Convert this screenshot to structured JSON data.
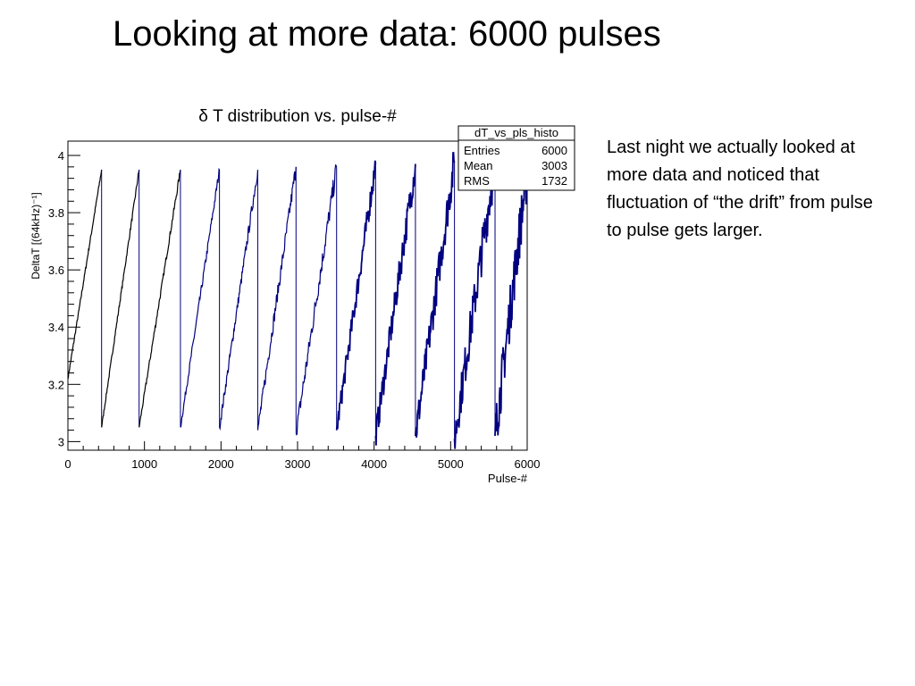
{
  "slide": {
    "title": "Looking at more data: 6000 pulses",
    "notes": "Last night we actually looked at more data and noticed that fluctuation of “the drift” from pulse to pulse gets larger."
  },
  "chart_data": {
    "type": "line",
    "title": "δ T distribution vs. pulse-#",
    "xlabel": "Pulse-#",
    "ylabel": "DeltaT [(64kHz)⁻¹]",
    "xlim": [
      0,
      6000
    ],
    "ylim": [
      2.97,
      4.05
    ],
    "xticks": [
      "0",
      "1000",
      "2000",
      "3000",
      "4000",
      "5000",
      "6000"
    ],
    "yticks": [
      "3",
      "3.2",
      "3.4",
      "3.6",
      "3.8",
      "4"
    ],
    "grid": false,
    "colors": [
      "#000000",
      "#00007f"
    ],
    "stats_box": {
      "title": "dT_vs_pls_histo",
      "rows": [
        {
          "label": "Entries",
          "value": "6000"
        },
        {
          "label": "Mean",
          "value": "3003"
        },
        {
          "label": "RMS",
          "value": "1732"
        }
      ]
    },
    "series": [
      {
        "x": [
          0,
          440,
          440,
          930,
          930,
          1470,
          1470,
          1980,
          1980,
          2480,
          2480,
          2980,
          2980,
          3510,
          3510,
          4020,
          4020,
          4540,
          4540,
          5050,
          5050,
          5580,
          5580,
          6000
        ],
        "y": [
          3.22,
          3.95,
          3.05,
          3.95,
          3.05,
          3.95,
          3.05,
          3.95,
          3.05,
          3.95,
          3.04,
          3.96,
          3.03,
          3.96,
          3.04,
          3.97,
          3.02,
          3.97,
          3.02,
          3.98,
          3.01,
          3.98,
          3.02,
          3.95
        ]
      }
    ]
  }
}
